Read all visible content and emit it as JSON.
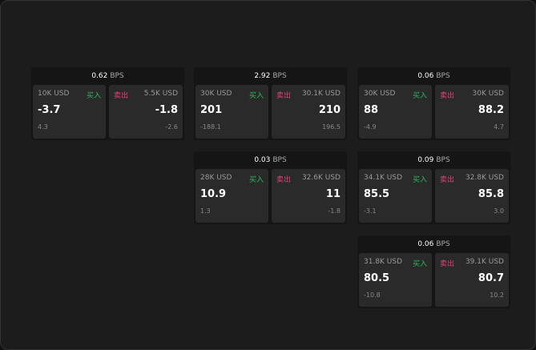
{
  "buy_label": "买入",
  "sell_label": "卖出",
  "unit": "BPS",
  "colors": {
    "buy": "#2fb561",
    "sell": "#e5407a"
  },
  "cards": [
    {
      "spread": "0.62",
      "bid_size": "10K USD",
      "bid": "-3.7",
      "bid_chg": "4.3",
      "ask_size": "5.5K USD",
      "ask": "-1.8",
      "ask_chg": "-2.6"
    },
    {
      "spread": "2.92",
      "bid_size": "30K USD",
      "bid": "201",
      "bid_chg": "-188.1",
      "ask_size": "30.1K USD",
      "ask": "210",
      "ask_chg": "196.5"
    },
    {
      "spread": "0.06",
      "bid_size": "30K USD",
      "bid": "88",
      "bid_chg": "-4.9",
      "ask_size": "30K USD",
      "ask": "88.2",
      "ask_chg": "4.7"
    },
    {
      "spread": "0.03",
      "bid_size": "28K USD",
      "bid": "10.9",
      "bid_chg": "1.3",
      "ask_size": "32.6K USD",
      "ask": "11",
      "ask_chg": "-1.8"
    },
    {
      "spread": "0.09",
      "bid_size": "34.1K USD",
      "bid": "85.5",
      "bid_chg": "-3.1",
      "ask_size": "32.8K USD",
      "ask": "85.8",
      "ask_chg": "3.0"
    },
    {
      "spread": "0.06",
      "bid_size": "31.8K USD",
      "bid": "80.5",
      "bid_chg": "-10.8",
      "ask_size": "39.1K USD",
      "ask": "80.7",
      "ask_chg": "10.2"
    }
  ]
}
